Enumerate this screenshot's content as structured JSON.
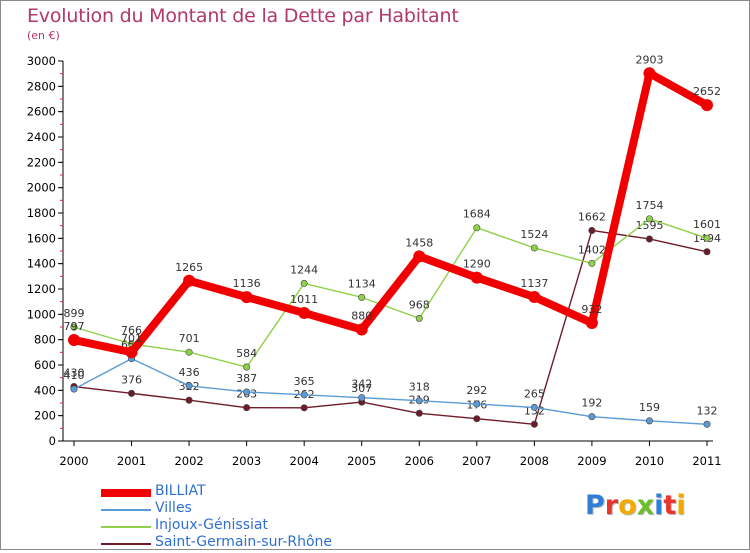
{
  "chart_data": {
    "type": "line",
    "title": "Evolution du Montant de la Dette par Habitant",
    "subtitle": "(en €)",
    "categories": [
      "2000",
      "2001",
      "2002",
      "2003",
      "2004",
      "2005",
      "2006",
      "2007",
      "2008",
      "2009",
      "2010",
      "2011"
    ],
    "ylim": [
      0,
      3000
    ],
    "yticks": [
      0,
      200,
      400,
      600,
      800,
      1000,
      1200,
      1400,
      1600,
      1800,
      2000,
      2200,
      2400,
      2600,
      2800,
      3000
    ],
    "grid": false,
    "legend_position": "bottom-left",
    "series": [
      {
        "name": "Saint-Germain-sur-Rhône",
        "color": "#6e1c2a",
        "values": [
          430,
          376,
          322,
          263,
          262,
          307,
          219,
          176,
          132,
          1662,
          1595,
          1494
        ]
      },
      {
        "name": "Injoux-Génissiat",
        "color": "#8fd14a",
        "values": [
          899,
          766,
          701,
          584,
          1244,
          1134,
          968,
          1684,
          1524,
          1402,
          1754,
          1601
        ]
      },
      {
        "name": "Villes",
        "color": "#5b9bd5",
        "values": [
          410,
          650,
          436,
          387,
          365,
          342,
          318,
          292,
          265,
          192,
          159,
          132
        ]
      },
      {
        "name": "BILLIAT",
        "color": "#f00000",
        "values": [
          797,
          701,
          1265,
          1136,
          1011,
          880,
          1458,
          1290,
          1137,
          932,
          2903,
          2652
        ]
      }
    ]
  },
  "legend": [
    {
      "label": "BILLIAT",
      "color": "#f00000"
    },
    {
      "label": "Villes",
      "color": "#5b9bd5"
    },
    {
      "label": "Injoux-Génissiat",
      "color": "#8fd14a"
    },
    {
      "label": "Saint-Germain-sur-Rhône",
      "color": "#6e1c2a"
    }
  ],
  "logo": {
    "letters": [
      {
        "ch": "P",
        "color": "#2e7fd6"
      },
      {
        "ch": "r",
        "color": "#e8362d"
      },
      {
        "ch": "o",
        "color": "#f2a900"
      },
      {
        "ch": "x",
        "color": "#6bbf2a"
      },
      {
        "ch": "i",
        "color": "#2e7fd6"
      },
      {
        "ch": "t",
        "color": "#e8362d"
      },
      {
        "ch": "i",
        "color": "#f2a900"
      }
    ]
  }
}
